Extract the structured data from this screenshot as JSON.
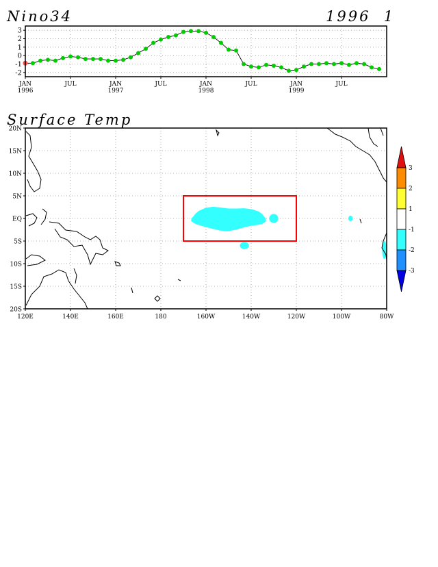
{
  "nino": {
    "title": "Nino34",
    "date_label": "1996  1",
    "chart_data": {
      "type": "line",
      "title": "Nino34",
      "ylim": [
        -2.5,
        3.5
      ],
      "yticks": [
        -2,
        -1,
        0,
        1,
        2,
        3
      ],
      "ytick_labels": [
        "-2",
        "-1",
        "0",
        "1",
        "2",
        "3"
      ],
      "xticks": [
        {
          "month": 0,
          "label1": "JAN",
          "label2": "1996"
        },
        {
          "month": 6,
          "label1": "JUL",
          "label2": ""
        },
        {
          "month": 12,
          "label1": "JAN",
          "label2": "1997"
        },
        {
          "month": 18,
          "label1": "JUL",
          "label2": ""
        },
        {
          "month": 24,
          "label1": "JAN",
          "label2": "1998"
        },
        {
          "month": 30,
          "label1": "JUL",
          "label2": ""
        },
        {
          "month": 36,
          "label1": "JAN",
          "label2": "1999"
        },
        {
          "month": 42,
          "label1": "JUL",
          "label2": ""
        }
      ],
      "grid": true,
      "series": [
        {
          "color": "#00cc00",
          "x": [
            0,
            1,
            2,
            3,
            4,
            5,
            6,
            7,
            8,
            9,
            10,
            11,
            12,
            13,
            14,
            15,
            16,
            17,
            18,
            19,
            20,
            21,
            22,
            23,
            24,
            25,
            26,
            27,
            28,
            29,
            30,
            31,
            32,
            33,
            34,
            35,
            36,
            37,
            38,
            39,
            40,
            41,
            42,
            43,
            44,
            45,
            46,
            47
          ],
          "values": [
            -0.9,
            -0.9,
            -0.6,
            -0.5,
            -0.6,
            -0.3,
            -0.1,
            -0.2,
            -0.4,
            -0.4,
            -0.4,
            -0.6,
            -0.6,
            -0.5,
            -0.2,
            0.3,
            0.8,
            1.5,
            1.9,
            2.2,
            2.4,
            2.8,
            2.9,
            2.9,
            2.7,
            2.2,
            1.5,
            0.7,
            0.6,
            -1.0,
            -1.3,
            -1.4,
            -1.1,
            -1.2,
            -1.4,
            -1.8,
            -1.7,
            -1.3,
            -1.0,
            -1.0,
            -0.9,
            -1.0,
            -0.9,
            -1.1,
            -0.9,
            -1.0,
            -1.4,
            -1.6
          ]
        }
      ],
      "highlight": {
        "month": 0,
        "value": -0.9,
        "color": "#ff5050"
      }
    }
  },
  "map": {
    "title": "Surface Temp",
    "chart_data": {
      "type": "heatmap",
      "title": "Surface Temp",
      "xlim_lon": [
        120,
        280
      ],
      "ylim_lat": [
        -20,
        20
      ],
      "xtick_labels": [
        "120E",
        "140E",
        "160E",
        "180",
        "160W",
        "140W",
        "120W",
        "100W",
        "80W"
      ],
      "ytick_labels": [
        "20N",
        "15N",
        "10N",
        "5N",
        "EQ",
        "5S",
        "10S",
        "15S",
        "20S"
      ],
      "grid": true,
      "region_box": {
        "lon_range": [
          190,
          240
        ],
        "lat_range": [
          -5,
          5
        ],
        "color": "#ff0000"
      },
      "anomaly_regions": [
        {
          "category": "-2 to -1",
          "lon_center": 210,
          "lat_center": 0,
          "lon_half_width": 17,
          "lat_half_width": 2.5
        },
        {
          "category": "-2 to -1",
          "lon_center": 230,
          "lat_center": 0,
          "lon_half_width": 2,
          "lat_half_width": 1
        },
        {
          "category": "-2 to -1",
          "lon_center": 217,
          "lat_center": -6,
          "lon_half_width": 2,
          "lat_half_width": 0.8
        },
        {
          "category": "-2 to -1",
          "lon_center": 264,
          "lat_center": 0,
          "lon_half_width": 1,
          "lat_half_width": 0.6
        },
        {
          "category": "-2 to -1",
          "lon_center": 279,
          "lat_center": -7,
          "lon_half_width": 1,
          "lat_half_width": 2
        }
      ]
    }
  },
  "colorbar": {
    "labels": [
      "3",
      "2",
      "1",
      "-1",
      "-2",
      "-3"
    ],
    "colors": {
      "above3": "#e01010",
      "c2to3": "#ff8c00",
      "c1to2": "#ffff33",
      "cm1to1": "#ffffff",
      "cm2tom1": "#33ffff",
      "cm3tom2": "#1e90ff",
      "belowm3": "#0000e0"
    }
  }
}
